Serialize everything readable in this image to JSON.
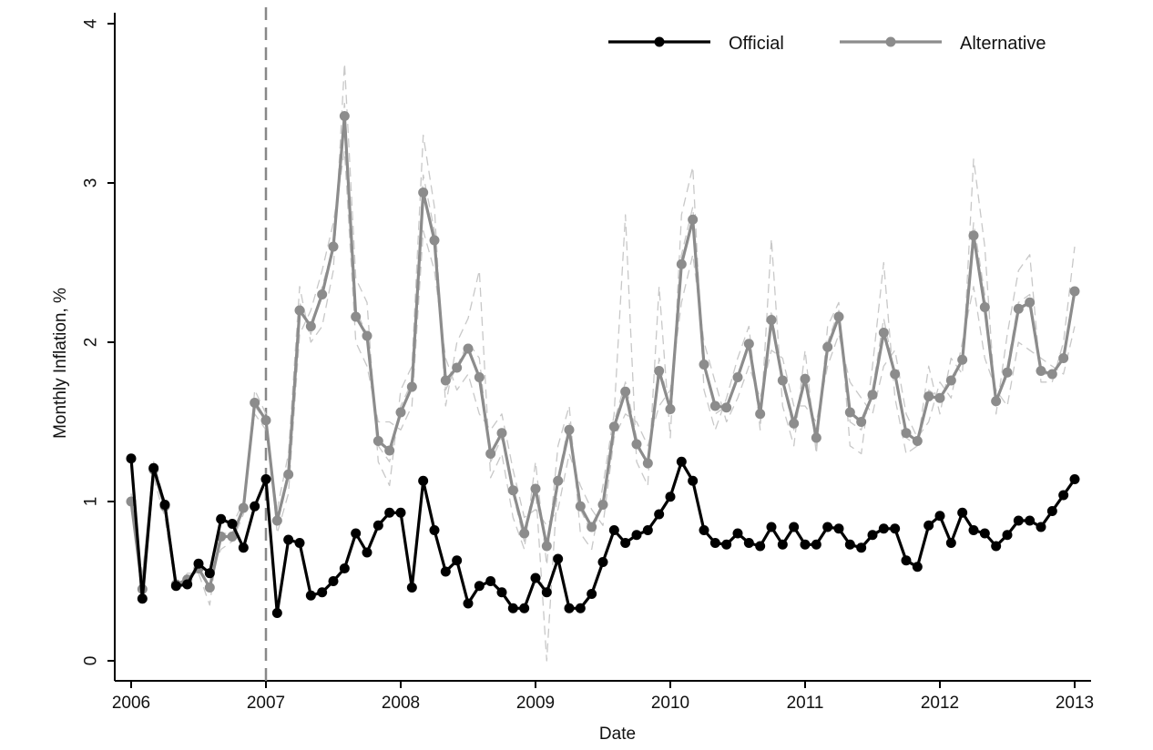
{
  "chart_data": {
    "type": "line",
    "xlabel": "Date",
    "ylabel": "Monthly Inflation, %",
    "xlim": [
      2006,
      2013
    ],
    "ylim": [
      0,
      4
    ],
    "x_ticks": [
      2006,
      2007,
      2008,
      2009,
      2010,
      2011,
      2012,
      2013
    ],
    "y_ticks": [
      0,
      1,
      2,
      3,
      4
    ],
    "reference_line": {
      "x": 2007,
      "style": "dashed",
      "color": "#888888"
    },
    "legend": {
      "placement": "top-right"
    },
    "legend_entries": [
      "Official",
      "Alternative"
    ],
    "series": [
      {
        "name": "Official",
        "color": "#000000",
        "marker": "circle",
        "x_start": 2006,
        "x_step": 0.0833333,
        "values": [
          1.27,
          0.39,
          1.21,
          0.98,
          0.47,
          0.48,
          0.61,
          0.55,
          0.89,
          0.86,
          0.71,
          0.97,
          1.14,
          0.3,
          0.76,
          0.74,
          0.41,
          0.43,
          0.5,
          0.58,
          0.8,
          0.68,
          0.85,
          0.93,
          0.93,
          0.46,
          1.13,
          0.82,
          0.56,
          0.63,
          0.36,
          0.47,
          0.5,
          0.43,
          0.33,
          0.33,
          0.52,
          0.43,
          0.64,
          0.33,
          0.33,
          0.42,
          0.62,
          0.82,
          0.74,
          0.79,
          0.82,
          0.92,
          1.03,
          1.25,
          1.13,
          0.82,
          0.74,
          0.73,
          0.8,
          0.74,
          0.72,
          0.84,
          0.73,
          0.84,
          0.73,
          0.73,
          0.84,
          0.83,
          0.73,
          0.71,
          0.79,
          0.83,
          0.83,
          0.63,
          0.59,
          0.85,
          0.91,
          0.74,
          0.93,
          0.82,
          0.8,
          0.72,
          0.79,
          0.88,
          0.88,
          0.84,
          0.94,
          1.04,
          1.14
        ]
      },
      {
        "name": "Alternative",
        "color": "#8c8c8c",
        "marker": "circle",
        "x_start": 2006,
        "x_step": 0.0833333,
        "values": [
          1.0,
          0.45,
          1.2,
          0.97,
          0.48,
          0.51,
          0.58,
          0.46,
          0.78,
          0.78,
          0.96,
          1.62,
          1.51,
          0.88,
          1.17,
          2.2,
          2.1,
          2.3,
          2.6,
          3.42,
          2.16,
          2.04,
          1.38,
          1.32,
          1.56,
          1.72,
          2.94,
          2.64,
          1.76,
          1.84,
          1.96,
          1.78,
          1.3,
          1.43,
          1.07,
          0.8,
          1.08,
          0.72,
          1.13,
          1.45,
          0.97,
          0.84,
          0.98,
          1.47,
          1.69,
          1.36,
          1.24,
          1.82,
          1.58,
          2.49,
          2.77,
          1.86,
          1.6,
          1.59,
          1.78,
          1.99,
          1.55,
          2.14,
          1.76,
          1.49,
          1.77,
          1.4,
          1.97,
          2.16,
          1.56,
          1.5,
          1.67,
          2.06,
          1.8,
          1.43,
          1.38,
          1.66,
          1.65,
          1.76,
          1.89,
          2.67,
          2.22,
          1.63,
          1.81,
          2.21,
          2.25,
          1.82,
          1.8,
          1.9,
          2.32
        ]
      },
      {
        "name": "",
        "role": "alternative measure (thin dashed)",
        "color": "#c8c8c8",
        "x_start": 2006,
        "x_step": 0.0833333,
        "values": [
          0.95,
          0.55,
          1.15,
          0.9,
          0.45,
          0.55,
          0.55,
          0.35,
          0.9,
          0.85,
          1.0,
          1.55,
          1.45,
          0.95,
          1.3,
          2.35,
          2.0,
          2.1,
          2.45,
          3.75,
          2.4,
          2.25,
          1.25,
          1.1,
          1.7,
          1.85,
          3.3,
          2.85,
          1.6,
          2.0,
          2.15,
          2.45,
          1.15,
          1.3,
          0.9,
          0.7,
          1.25,
          0.6,
          1.35,
          1.6,
          0.8,
          0.7,
          1.1,
          1.55,
          2.8,
          1.25,
          1.1,
          2.35,
          1.4,
          2.8,
          3.1,
          1.7,
          1.45,
          1.65,
          1.9,
          2.1,
          1.45,
          2.65,
          1.6,
          1.35,
          1.95,
          1.3,
          2.1,
          2.25,
          1.35,
          1.3,
          1.85,
          2.5,
          1.65,
          1.3,
          1.35,
          1.85,
          1.55,
          1.9,
          1.8,
          3.15,
          2.6,
          1.55,
          2.05,
          2.45,
          2.55,
          1.75,
          1.75,
          2.0,
          2.6
        ]
      },
      {
        "name": "",
        "role": "alternative measure (thin dashed)",
        "color": "#c8c8c8",
        "x_start": 2006,
        "x_step": 0.0833333,
        "values": [
          1.05,
          0.4,
          1.25,
          1.0,
          0.5,
          0.48,
          0.62,
          0.55,
          0.7,
          0.75,
          0.92,
          1.7,
          1.55,
          0.8,
          1.05,
          2.05,
          2.2,
          2.45,
          2.75,
          3.2,
          2.0,
          1.85,
          1.5,
          1.5,
          1.45,
          1.6,
          2.7,
          2.45,
          1.9,
          1.7,
          1.8,
          1.55,
          1.45,
          1.55,
          1.2,
          0.9,
          0.95,
          0.85,
          0.95,
          1.3,
          1.1,
          0.95,
          0.85,
          1.4,
          1.55,
          1.5,
          1.35,
          1.6,
          1.7,
          2.25,
          2.55,
          2.0,
          1.75,
          1.5,
          1.65,
          1.85,
          1.65,
          1.95,
          1.9,
          1.6,
          1.6,
          1.5,
          1.85,
          2.05,
          1.75,
          1.65,
          1.55,
          1.85,
          1.95,
          1.55,
          1.4,
          1.5,
          1.75,
          1.65,
          2.0,
          2.35,
          1.9,
          1.7,
          1.6,
          2.0,
          1.95,
          1.9,
          1.85,
          1.8,
          2.1
        ]
      },
      {
        "name": "",
        "role": "alternative measure (thin dashed)",
        "color": "#c8c8c8",
        "x_start": 2006,
        "x_step": 0.0833333,
        "values": [
          1.0,
          0.5,
          1.2,
          0.95,
          0.47,
          0.5,
          0.6,
          0.45,
          0.8,
          0.8,
          0.95,
          1.6,
          1.5,
          0.85,
          1.15,
          2.25,
          2.05,
          2.35,
          2.6,
          3.5,
          2.2,
          2.05,
          1.35,
          1.25,
          1.6,
          1.75,
          3.05,
          2.7,
          1.7,
          1.85,
          2.0,
          1.9,
          1.25,
          1.4,
          1.05,
          0.75,
          1.1,
          0.0,
          1.15,
          1.5,
          0.95,
          0.8,
          1.0,
          1.5,
          1.75,
          1.4,
          1.2,
          1.9,
          1.55,
          2.55,
          2.85,
          1.9,
          1.55,
          1.6,
          1.8,
          2.0,
          1.5,
          2.2,
          1.75,
          1.45,
          1.8,
          1.35,
          2.0,
          2.2,
          1.5,
          1.45,
          1.7,
          2.15,
          1.8,
          1.4,
          1.35,
          1.7,
          1.65,
          1.75,
          1.9,
          2.75,
          2.3,
          1.6,
          1.85,
          2.25,
          2.3,
          1.8,
          1.8,
          1.9,
          2.35
        ]
      }
    ]
  }
}
